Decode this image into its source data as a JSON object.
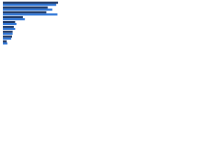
{
  "chart_data": {
    "type": "hbar",
    "categories": [
      null,
      null,
      null,
      null,
      null,
      null,
      null,
      null,
      null
    ],
    "series": [
      {
        "color": "#1f3864",
        "values": [
          85,
          69,
          67,
          31,
          19,
          17,
          15,
          14,
          6
        ]
      },
      {
        "color": "#2e75d6",
        "values": [
          82,
          76,
          84,
          34,
          21,
          19,
          15,
          13,
          7
        ]
      }
    ],
    "xlim": [
      0,
      100
    ]
  }
}
